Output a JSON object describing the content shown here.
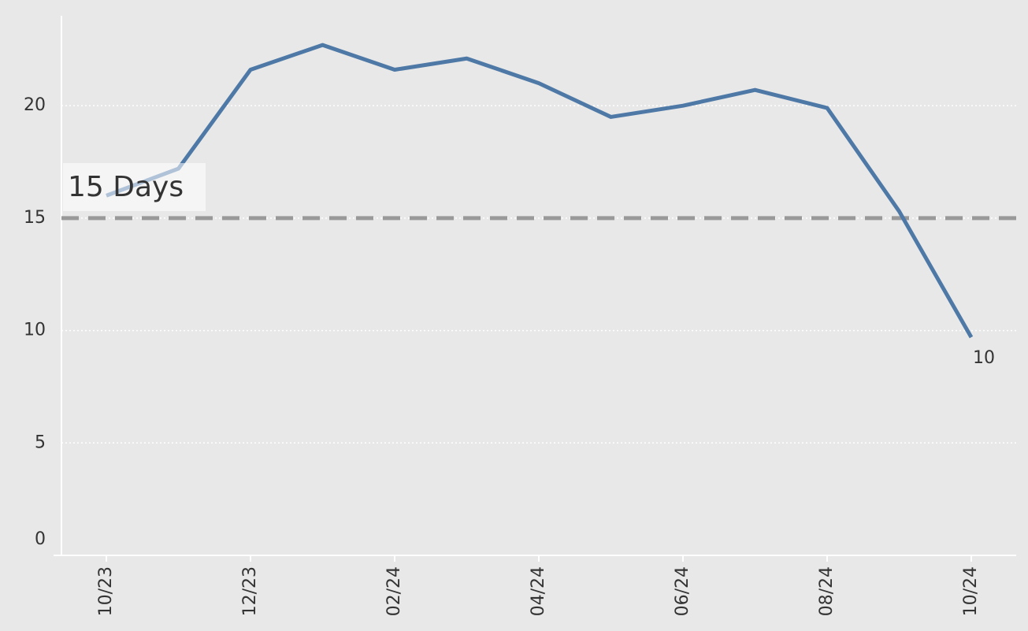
{
  "chart_data": {
    "type": "line",
    "categories": [
      "10/23",
      null,
      "12/23",
      null,
      "02/24",
      null,
      "04/24",
      null,
      "06/24",
      null,
      "08/24",
      null,
      "10/24"
    ],
    "series": [
      {
        "name": null,
        "color": "#4e79a7",
        "values": [
          16.0,
          17.2,
          21.6,
          22.7,
          21.6,
          22.1,
          21.0,
          19.5,
          20.0,
          20.7,
          19.9,
          15.3,
          9.7
        ],
        "value_labels": [
          null,
          null,
          null,
          null,
          null,
          null,
          null,
          null,
          null,
          null,
          null,
          null,
          "10"
        ]
      }
    ],
    "ylim": [
      0,
      24
    ],
    "yticks": [
      0,
      5,
      10,
      15,
      20
    ],
    "grid": true,
    "reference_line": {
      "value": 15,
      "label": "15 Days",
      "color": "#999999"
    }
  }
}
